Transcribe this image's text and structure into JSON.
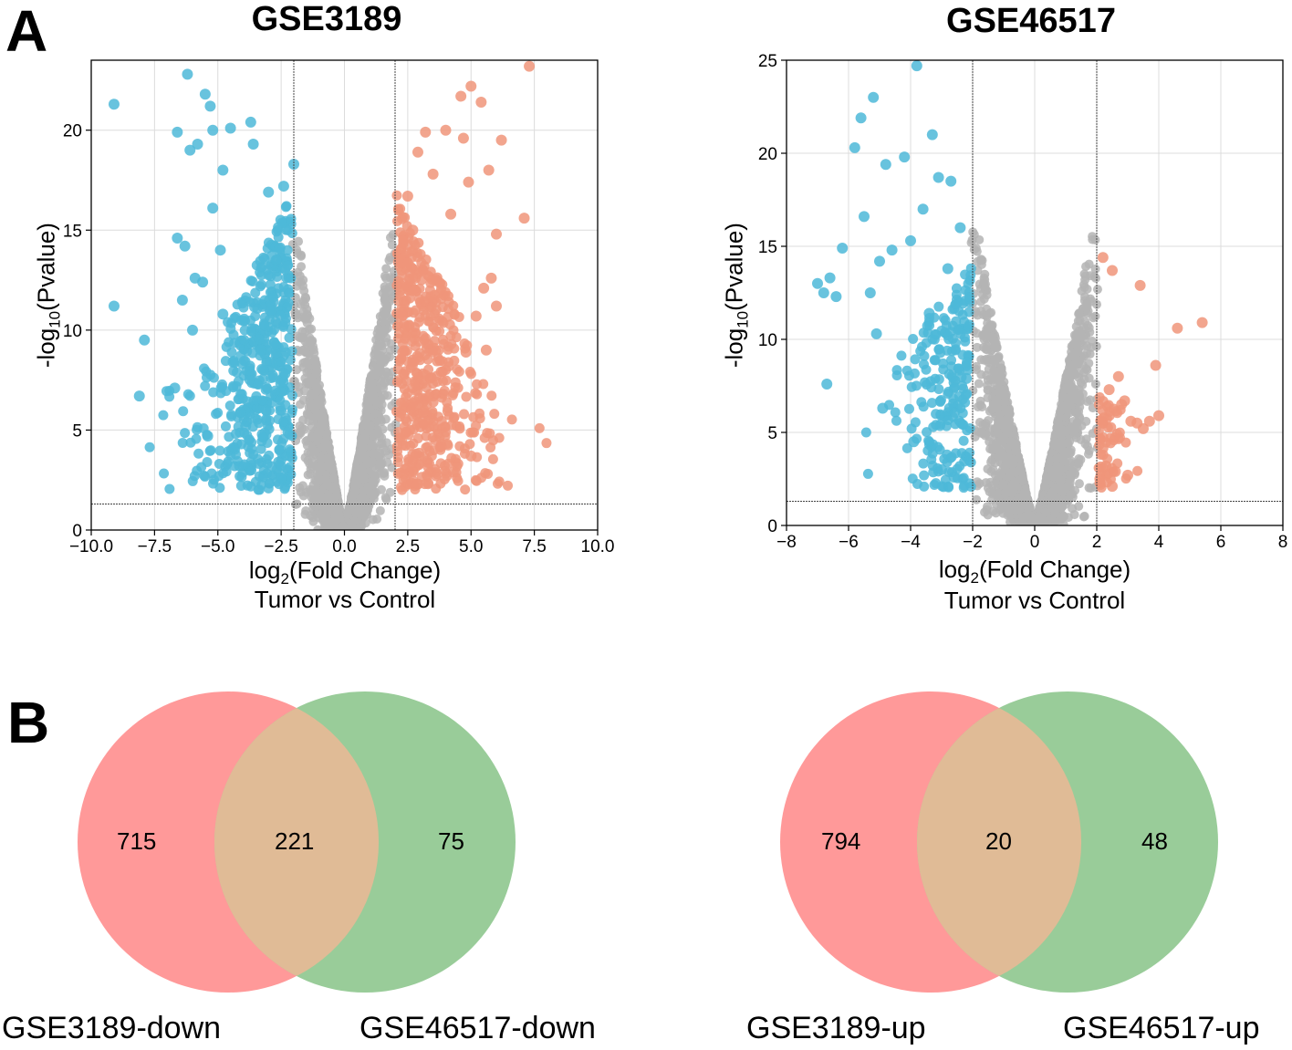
{
  "figure": {
    "panel_a_label": "A",
    "panel_b_label": "B"
  },
  "chart_data": [
    {
      "type": "scatter",
      "id": "volcano-gse3189",
      "title": "GSE3189",
      "xlabel": "log2(Fold Change)",
      "xlabel_main": "log",
      "xlabel_sub": "2",
      "xlabel_rest": "(Fold Change)",
      "xlabel2": "Tumor vs Control",
      "ylabel_main": "-log",
      "ylabel_sub": "10",
      "ylabel_rest": "(Pvalue)",
      "xlim": [
        -10,
        10
      ],
      "ylim": [
        0,
        23.5
      ],
      "xticks": [
        -10,
        -7.5,
        -5,
        -2.5,
        0,
        2.5,
        5,
        7.5,
        10
      ],
      "xtick_labels": [
        "−10.0",
        "−7.5",
        "−5.0",
        "−2.5",
        "0.0",
        "2.5",
        "5.0",
        "7.5",
        "10.0"
      ],
      "yticks": [
        0,
        5,
        10,
        15,
        20
      ],
      "ytick_labels": [
        "0",
        "5",
        "10",
        "15",
        "20"
      ],
      "fc_thresholds": [
        -2,
        2
      ],
      "p_threshold": 1.3,
      "grid": true,
      "colors": {
        "down": "#4db8d8",
        "up": "#f0957a",
        "ns": "#b4b4b4"
      },
      "series": [
        {
          "group": "down",
          "x": [
            -9.1,
            -9.1,
            -7.9,
            -8.1,
            -6.6,
            -6.2,
            -6.1,
            -5.8,
            -5.5,
            -5.3,
            -5.2,
            -5.2,
            -4.8,
            -4.5,
            -6.6,
            -6.3,
            -4.9,
            -5.9,
            -6.4,
            -3.6,
            -3.7,
            -3.0,
            -2.4,
            -2.0,
            -2.9,
            -3.3,
            -3.2,
            -2.3,
            -5.6,
            -6.0,
            -6.7,
            -4.1,
            -5.4,
            -2.6,
            -2.5,
            -3.1,
            -3.9,
            -4.4,
            -4.8,
            -2.7
          ],
          "y": [
            21.3,
            11.2,
            9.5,
            6.7,
            19.9,
            22.8,
            19.0,
            19.3,
            21.8,
            21.2,
            20.0,
            16.1,
            18.0,
            20.1,
            14.6,
            14.2,
            14.0,
            12.6,
            11.5,
            19.3,
            20.4,
            16.9,
            17.2,
            18.3,
            11.0,
            9.0,
            8.0,
            2.5,
            12.4,
            10.0,
            7.1,
            5.9,
            4.7,
            3.4,
            2.6,
            6.0,
            5.2,
            8.4,
            10.8,
            13.5
          ]
        },
        {
          "group": "up",
          "x": [
            7.3,
            7.1,
            5.4,
            5.0,
            4.9,
            4.6,
            4.7,
            5.8,
            6.0,
            6.2,
            5.7,
            4.2,
            4.0,
            3.5,
            3.2,
            2.9,
            2.7,
            2.5,
            2.9,
            5.5,
            6.0,
            5.2,
            4.8,
            3.4,
            3.6,
            4.3,
            5.0,
            5.6,
            2.8,
            3.1
          ],
          "y": [
            23.2,
            15.6,
            21.4,
            22.2,
            17.4,
            21.7,
            19.6,
            12.6,
            11.2,
            19.5,
            18.0,
            15.8,
            20.0,
            17.8,
            19.9,
            18.9,
            15.0,
            16.7,
            2.3,
            12.1,
            14.8,
            10.7,
            8.9,
            7.6,
            4.5,
            2.9,
            3.7,
            9.0,
            12.6,
            5.9
          ]
        }
      ]
    },
    {
      "type": "scatter",
      "id": "volcano-gse46517",
      "title": "GSE46517",
      "xlabel": "log2(Fold Change)",
      "xlabel_main": "log",
      "xlabel_sub": "2",
      "xlabel_rest": "(Fold Change)",
      "xlabel2": "Tumor vs Control",
      "ylabel_main": "-log",
      "ylabel_sub": "10",
      "ylabel_rest": "(Pvalue)",
      "xlim": [
        -8,
        8
      ],
      "ylim": [
        0,
        25
      ],
      "xticks": [
        -8,
        -6,
        -4,
        -2,
        0,
        2,
        4,
        6,
        8
      ],
      "xtick_labels": [
        "−8",
        "−6",
        "−4",
        "−2",
        "0",
        "2",
        "4",
        "6",
        "8"
      ],
      "yticks": [
        0,
        5,
        10,
        15,
        20,
        25
      ],
      "ytick_labels": [
        "0",
        "5",
        "10",
        "15",
        "20",
        "25"
      ],
      "fc_thresholds": [
        -2,
        2
      ],
      "p_threshold": 1.3,
      "grid": true,
      "colors": {
        "down": "#4db8d8",
        "up": "#f0957a",
        "ns": "#b4b4b4"
      },
      "series": [
        {
          "group": "down",
          "x": [
            -3.8,
            -5.2,
            -5.6,
            -5.8,
            -6.2,
            -6.6,
            -6.8,
            -7.0,
            -6.7,
            -6.4,
            -3.3,
            -4.2,
            -4.8,
            -5.5,
            -5.0,
            -4.6,
            -5.3,
            -5.1,
            -3.1,
            -2.7,
            -2.4,
            -3.6,
            -4.0,
            -2.8,
            -3.4,
            -2.2,
            -4.9,
            -3.9,
            -2.6,
            -3.0
          ],
          "y": [
            24.7,
            23.0,
            21.9,
            20.3,
            14.9,
            13.3,
            12.5,
            13.0,
            7.6,
            12.3,
            21.0,
            19.8,
            19.4,
            16.6,
            14.2,
            14.8,
            12.5,
            10.3,
            18.7,
            18.5,
            16.0,
            17.0,
            15.3,
            13.8,
            11.4,
            7.9,
            6.3,
            4.5,
            2.6,
            3.0
          ]
        },
        {
          "group": "up",
          "x": [
            5.4,
            4.6,
            3.9,
            3.4,
            2.2,
            2.5,
            2.7,
            2.9,
            3.1,
            3.3,
            3.7,
            2.4,
            2.8,
            2.3,
            2.6,
            2.1,
            2.5,
            3.0,
            3.5,
            4.0
          ],
          "y": [
            10.9,
            10.6,
            8.6,
            12.9,
            14.4,
            13.7,
            8.0,
            6.7,
            5.6,
            5.5,
            5.6,
            7.3,
            6.5,
            3.2,
            2.9,
            2.5,
            2.1,
            2.7,
            5.2,
            5.9
          ]
        }
      ]
    }
  ],
  "venn": [
    {
      "left_only": "715",
      "overlap": "221",
      "right_only": "75",
      "left_label": "GSE3189-down",
      "right_label": "GSE46517-down"
    },
    {
      "left_only": "794",
      "overlap": "20",
      "right_only": "48",
      "left_label": "GSE3189-up",
      "right_label": "GSE46517-up"
    }
  ],
  "venn_colors": {
    "left": "#ff9999",
    "right": "#99cc99",
    "overlap": "#e0bb96"
  }
}
